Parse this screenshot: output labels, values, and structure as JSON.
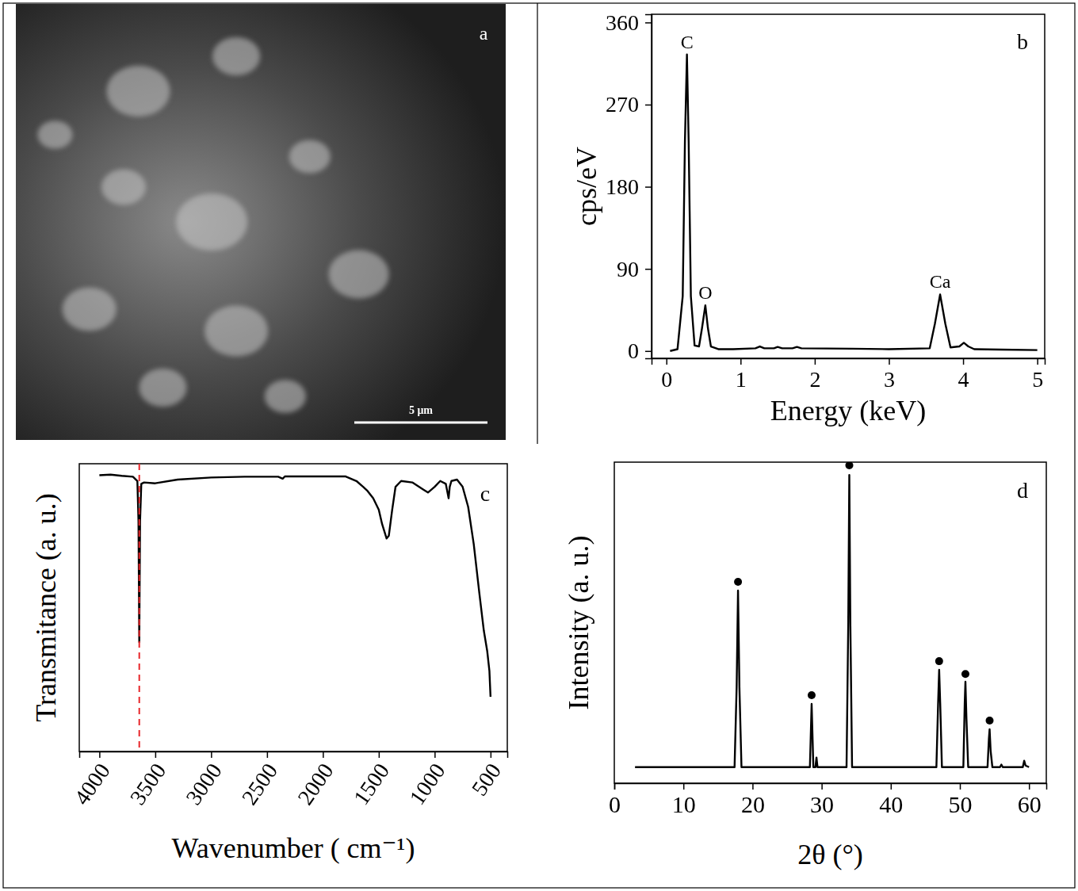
{
  "chart_data": [
    {
      "type": "image",
      "panel": "a",
      "annotations": [
        {
          "text": "5 μm"
        }
      ]
    },
    {
      "type": "line",
      "panel": "b",
      "x_label": "Energy (keV)",
      "y_label": "cps/eV",
      "xlim": [
        -0.2,
        5.1
      ],
      "ylim": [
        -8,
        369
      ],
      "xticks": [
        0,
        1,
        2,
        3,
        4,
        5
      ],
      "yticks": [
        0,
        90,
        180,
        270,
        360
      ],
      "series": [
        {
          "color": "#000000",
          "x": [
            0.05,
            0.15,
            0.22,
            0.25,
            0.277,
            0.3,
            0.33,
            0.38,
            0.44,
            0.48,
            0.525,
            0.56,
            0.6,
            0.7,
            0.9,
            1.2,
            1.26,
            1.32,
            1.45,
            1.5,
            1.56,
            1.7,
            1.76,
            1.82,
            2.5,
            3.0,
            3.55,
            3.62,
            3.69,
            3.76,
            3.83,
            3.95,
            4.01,
            4.07,
            4.15,
            4.5,
            5.0
          ],
          "values": [
            0,
            2,
            60,
            230,
            325,
            230,
            60,
            6,
            5,
            25,
            50,
            25,
            5,
            2,
            2,
            3,
            5,
            3,
            3,
            4.5,
            3,
            3,
            4.5,
            3,
            2.5,
            2,
            3,
            30,
            62,
            30,
            4,
            5,
            9,
            5,
            2,
            1.5,
            1
          ]
        }
      ],
      "annotations": [
        {
          "text": "C",
          "x": 0.277
        },
        {
          "text": "O",
          "x": 0.525
        },
        {
          "text": "Ca",
          "x": 3.69
        }
      ]
    },
    {
      "type": "line",
      "panel": "c",
      "x_label": "Wavenumber ( cm⁻¹)",
      "y_label": "Transmitance (a. u.)",
      "xlim": [
        4180,
        350
      ],
      "ylim": [
        0,
        100
      ],
      "xticks": [
        4000,
        3500,
        3000,
        2500,
        2000,
        1500,
        1000,
        500
      ],
      "tick_labels": "x",
      "series": [
        {
          "color": "#000000",
          "x": [
            4000,
            3900,
            3800,
            3700,
            3660,
            3650,
            3643,
            3636,
            3625,
            3600,
            3500,
            3300,
            3000,
            2700,
            2400,
            2360,
            2340,
            2000,
            1800,
            1700,
            1640,
            1600,
            1550,
            1500,
            1470,
            1430,
            1410,
            1380,
            1350,
            1300,
            1200,
            1100,
            1060,
            1000,
            950,
            900,
            875,
            865,
            850,
            800,
            750,
            700,
            650,
            600,
            560,
            530,
            510,
            500
          ],
          "values": [
            96,
            96.2,
            95.8,
            95.5,
            94,
            80,
            38,
            80,
            93,
            93.5,
            93.2,
            94.5,
            95.2,
            95.5,
            95.5,
            94.8,
            95.6,
            95.6,
            95.6,
            94,
            92,
            90.5,
            88,
            84,
            79,
            74,
            75,
            84,
            92,
            94,
            93.5,
            91,
            90,
            92,
            94,
            93,
            88,
            92,
            94,
            94.5,
            92,
            85,
            72,
            55,
            42,
            35,
            28,
            19
          ]
        }
      ],
      "reference_lines": [
        {
          "x": 3643,
          "color": "#e8262a",
          "line_style": "dashed"
        }
      ]
    },
    {
      "type": "line",
      "panel": "d",
      "x_label": "2θ (°)",
      "y_label": "Intensity (a. u.)",
      "xlim": [
        0,
        62.5
      ],
      "ylim": [
        0,
        100
      ],
      "xticks": [
        0,
        10,
        20,
        30,
        40,
        50,
        60
      ],
      "tick_labels": "x",
      "series": [
        {
          "type": "line",
          "color": "#000000",
          "x": [
            3,
            17.4,
            17.7,
            17.9,
            18.1,
            18.4,
            28.3,
            28.55,
            28.8,
            29.1,
            29.25,
            29.4,
            33.6,
            33.85,
            34.0,
            34.15,
            34.4,
            46.6,
            46.85,
            47.0,
            47.15,
            47.4,
            50.5,
            50.7,
            50.8,
            50.95,
            51.2,
            54.0,
            54.2,
            54.3,
            54.45,
            54.7,
            55.8,
            56.0,
            56.2,
            59.1,
            59.3,
            59.5,
            60
          ],
          "values": [
            5,
            5,
            30,
            60,
            30,
            5,
            5,
            24.7,
            5,
            5,
            8,
            5,
            5,
            50,
            96,
            50,
            5,
            5,
            25,
            35.3,
            25,
            5,
            5,
            25,
            31.6,
            20,
            5,
            5,
            14,
            16.8,
            10,
            5,
            5,
            5.8,
            5,
            5,
            7,
            5.5,
            5
          ]
        },
        {
          "type": "scatter",
          "marker": "circle",
          "color": "#000000",
          "x": [
            17.9,
            28.55,
            34.0,
            47.0,
            50.8,
            54.3
          ],
          "values": [
            62.7,
            27.4,
            99,
            38,
            34,
            19.5
          ]
        }
      ]
    }
  ]
}
